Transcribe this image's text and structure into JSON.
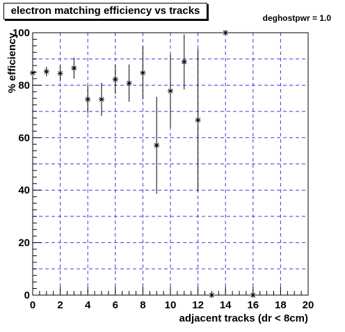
{
  "chart_data": {
    "type": "scatter",
    "title": "electron matching efficiency vs tracks",
    "annotation": "deghostpwr = 1.0",
    "xlabel": "adjacent tracks (dr < 8cm)",
    "ylabel": "% efficiency",
    "xlim": [
      0,
      20
    ],
    "ylim": [
      0,
      100
    ],
    "x_ticks": [
      "0",
      "2",
      "4",
      "6",
      "8",
      "10",
      "12",
      "14",
      "16",
      "18",
      "20"
    ],
    "y_ticks": [
      "0",
      "20",
      "40",
      "60",
      "80",
      "100"
    ],
    "grid": true,
    "marker": "star",
    "points": [
      {
        "x": 0,
        "y": 84.7,
        "err_low": 0,
        "err_high": 0
      },
      {
        "x": 1,
        "y": 85.2,
        "err_low": 1.8,
        "err_high": 1.8
      },
      {
        "x": 2,
        "y": 84.5,
        "err_low": 3.0,
        "err_high": 3.0
      },
      {
        "x": 3,
        "y": 86.5,
        "err_low": 4.0,
        "err_high": 4.0
      },
      {
        "x": 4,
        "y": 74.6,
        "err_low": 5.3,
        "err_high": 5.3
      },
      {
        "x": 5,
        "y": 74.6,
        "err_low": 6.3,
        "err_high": 6.3
      },
      {
        "x": 6,
        "y": 82.2,
        "err_low": 5.5,
        "err_high": 5.5
      },
      {
        "x": 7,
        "y": 80.8,
        "err_low": 7.1,
        "err_high": 7.1
      },
      {
        "x": 8,
        "y": 84.7,
        "err_low": 10.1,
        "err_high": 10.1
      },
      {
        "x": 9,
        "y": 57.1,
        "err_low": 18.5,
        "err_high": 18.5
      },
      {
        "x": 10,
        "y": 77.8,
        "err_low": 13.9,
        "err_high": 13.9
      },
      {
        "x": 11,
        "y": 88.9,
        "err_low": 10.5,
        "err_high": 10.5
      },
      {
        "x": 12,
        "y": 66.7,
        "err_low": 27.2,
        "err_high": 27.2
      },
      {
        "x": 13,
        "y": 0,
        "err_low": 0,
        "err_high": 0
      },
      {
        "x": 14,
        "y": 100,
        "err_low": 0,
        "err_high": 0
      },
      {
        "x": 16,
        "y": 0,
        "err_low": 0,
        "err_high": 0
      }
    ]
  }
}
